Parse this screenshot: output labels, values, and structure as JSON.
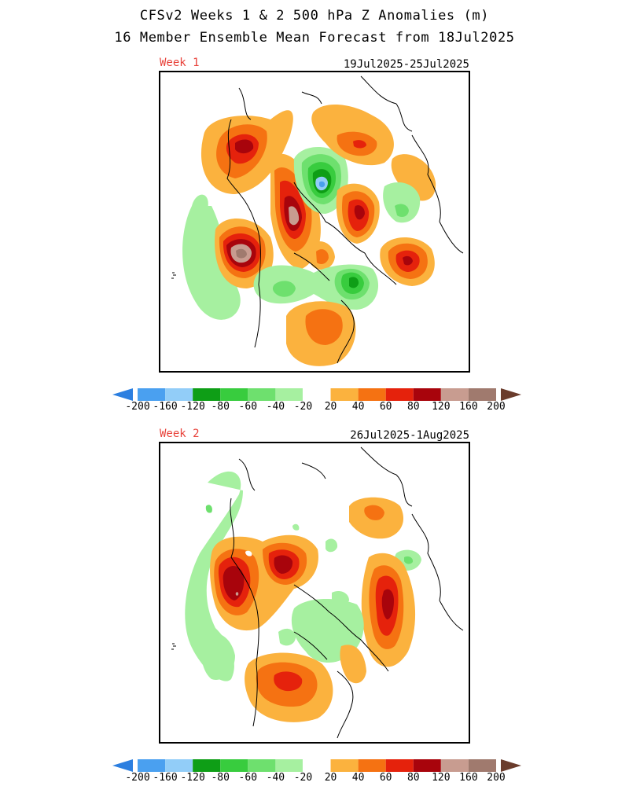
{
  "title_line1": "CFSv2 Weeks 1 & 2 500 hPa Z Anomalies (m)",
  "title_line2": "16 Member Ensemble Mean Forecast from 18Jul2025",
  "panels": [
    {
      "week": "Week 1",
      "dates": "19Jul2025-25Jul2025"
    },
    {
      "week": "Week 2",
      "dates": "26Jul2025-1Aug2025"
    }
  ],
  "colorbar": {
    "labels": [
      "-200",
      "-160",
      "-120",
      "-80",
      "-60",
      "-40",
      "-20",
      "20",
      "40",
      "60",
      "80",
      "120",
      "160",
      "200"
    ],
    "colors": [
      "#2c7fe0",
      "#4aa0f0",
      "#92cdf8",
      "#0e9e16",
      "#38cc3e",
      "#6ee06e",
      "#a6f0a0",
      "#ffffff",
      "#fbb23e",
      "#f57212",
      "#e5220c",
      "#a8040c",
      "#c89c90",
      "#a07a6e",
      "#6a3c2c"
    ]
  },
  "color_scale": {
    "pos20": "#fbb23e",
    "pos40": "#f57212",
    "pos60": "#e5220c",
    "pos80": "#a8040c",
    "pos120": "#c89c90",
    "pos160": "#a07a6e",
    "neg20": "#a6f0a0",
    "neg40": "#6ee06e",
    "neg60": "#38cc3e",
    "neg80": "#0e9e16",
    "neg120": "#92cdf8",
    "neg160": "#4aa0f0",
    "label_red": "#e8423a"
  }
}
